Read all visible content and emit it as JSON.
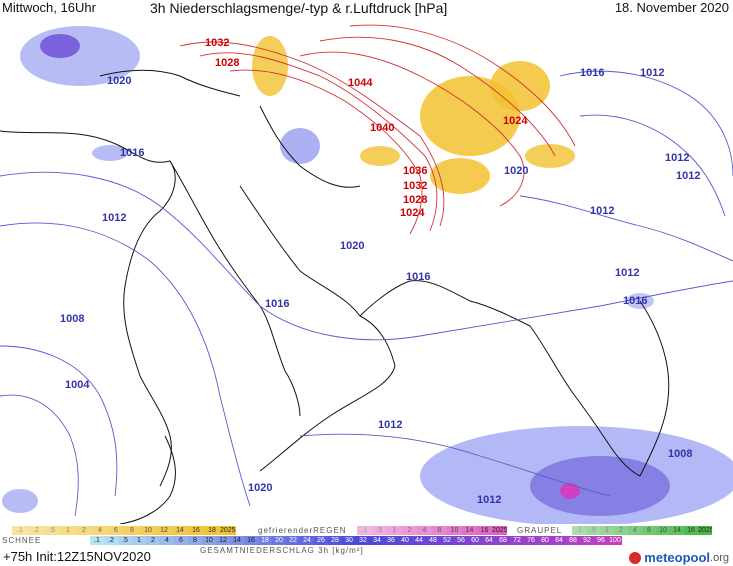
{
  "header": {
    "left": "Mittwoch, 16Uhr",
    "center": "3h Niederschlagsmenge/-typ & r.Luftdruck [hPa]",
    "right": "18. November 2020"
  },
  "isobars": {
    "red": [
      "1032",
      "1028",
      "1044",
      "1040",
      "1036",
      "1032",
      "1028",
      "1024",
      "1024"
    ],
    "blue": [
      "1020",
      "1016",
      "1012",
      "1008",
      "1004",
      "1020",
      "1016",
      "1016",
      "1020",
      "1012",
      "1012",
      "1016",
      "1016",
      "1012",
      "1012",
      "1012",
      "1012",
      "1008",
      "1012",
      "1020"
    ]
  },
  "legend": {
    "snow_label": "SCHNEE",
    "freezing_rain_label": "gefrierenderREGEN",
    "graupel_label": "GRAUPEL",
    "total_label": "GESAMTNIEDERSCHLAG 3h [kg/m²]",
    "snow_scale": [
      ".1",
      ".2",
      ".5",
      "1",
      "2",
      "4",
      "6",
      "8",
      "10",
      "12",
      "14",
      "16",
      "18",
      "2025+"
    ],
    "freezing_scale": [
      ".1",
      ".5",
      "1",
      "2",
      "4",
      "8",
      "10",
      "14",
      "16",
      "2025+"
    ],
    "graupel_scale": [
      ".1",
      ".5",
      "1",
      "2",
      "4",
      "8",
      "10",
      "14",
      "16",
      "2025+"
    ],
    "total_scale": [
      ".1",
      ".2",
      ".5",
      "1",
      "2",
      "4",
      "6",
      "8",
      "10",
      "12",
      "14",
      "16",
      "18",
      "20",
      "22",
      "24",
      "26",
      "28",
      "30",
      "32",
      "34",
      "36",
      "40",
      "44",
      "48",
      "52",
      "56",
      "60",
      "64",
      "68",
      "72",
      "76",
      "80",
      "84",
      "88",
      "92",
      "96",
      "100"
    ],
    "colors": {
      "snow": "#f2c230",
      "freezing": "#e060c0",
      "graupel": "#48b848",
      "total_low": "#b9e3f2",
      "total_mid": "#4a4ad8",
      "total_high": "#c040c0"
    }
  },
  "footer": {
    "init": "+75h Init:12Z15NOV2020",
    "logo_name": "meteopool",
    "logo_tld": ".org"
  }
}
